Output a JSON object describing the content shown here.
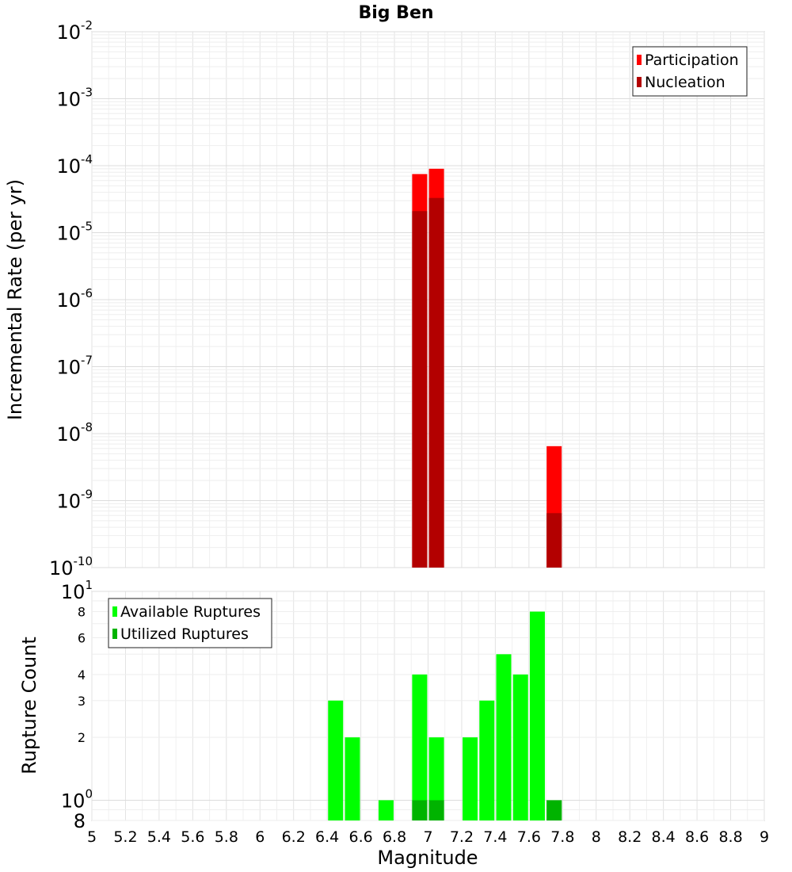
{
  "chart_data": [
    {
      "type": "bar",
      "title": "Big Ben",
      "ylabel": "Incremental Rate (per yr)",
      "y_scale": "log",
      "ylim": [
        1e-10,
        0.01
      ],
      "xlim": [
        5,
        9
      ],
      "grid": true,
      "legend_position": "top-right",
      "series": [
        {
          "name": "Participation",
          "color": "#ff0000",
          "bars": [
            {
              "x": 6.95,
              "y": 7.5e-05
            },
            {
              "x": 7.05,
              "y": 9e-05
            },
            {
              "x": 7.75,
              "y": 6.5e-09
            }
          ]
        },
        {
          "name": "Nucleation",
          "color": "#b30000",
          "bars": [
            {
              "x": 6.95,
              "y": 2.1e-05
            },
            {
              "x": 7.05,
              "y": 3.3e-05
            },
            {
              "x": 7.75,
              "y": 6.5e-10
            }
          ]
        }
      ],
      "y_ticks": [
        {
          "value": 0.01,
          "base": "10",
          "exp": "-2"
        },
        {
          "value": 0.001,
          "base": "10",
          "exp": "-3"
        },
        {
          "value": 0.0001,
          "base": "10",
          "exp": "-4"
        },
        {
          "value": 1e-05,
          "base": "10",
          "exp": "-5"
        },
        {
          "value": 1e-06,
          "base": "10",
          "exp": "-6"
        },
        {
          "value": 1e-07,
          "base": "10",
          "exp": "-7"
        },
        {
          "value": 1e-08,
          "base": "10",
          "exp": "-8"
        },
        {
          "value": 1e-09,
          "base": "10",
          "exp": "-9"
        },
        {
          "value": 1e-10,
          "base": "10",
          "exp": "-10"
        }
      ]
    },
    {
      "type": "bar",
      "xlabel": "Magnitude",
      "ylabel": "Rupture Count",
      "y_scale": "log",
      "ylim": [
        0.8,
        10
      ],
      "xlim": [
        5,
        9
      ],
      "grid": true,
      "legend_position": "top-left",
      "series": [
        {
          "name": "Available Ruptures",
          "color": "#00ff00",
          "bars": [
            {
              "x": 6.45,
              "y": 3
            },
            {
              "x": 6.55,
              "y": 2
            },
            {
              "x": 6.75,
              "y": 1
            },
            {
              "x": 6.95,
              "y": 4
            },
            {
              "x": 7.05,
              "y": 2
            },
            {
              "x": 7.25,
              "y": 2
            },
            {
              "x": 7.35,
              "y": 3
            },
            {
              "x": 7.45,
              "y": 5
            },
            {
              "x": 7.55,
              "y": 4
            },
            {
              "x": 7.65,
              "y": 8
            },
            {
              "x": 7.75,
              "y": 1
            }
          ]
        },
        {
          "name": "Utilized Ruptures",
          "color": "#00b300",
          "bars": [
            {
              "x": 6.95,
              "y": 1
            },
            {
              "x": 7.05,
              "y": 1
            },
            {
              "x": 7.75,
              "y": 1
            }
          ]
        }
      ],
      "y_ticks": [
        {
          "value": 10,
          "base": "10",
          "exp": "1"
        },
        {
          "value": 8,
          "label": "8"
        },
        {
          "value": 6,
          "label": "6"
        },
        {
          "value": 4,
          "label": "4"
        },
        {
          "value": 3,
          "label": "3"
        },
        {
          "value": 2,
          "label": "2"
        },
        {
          "value": 1,
          "base": "10",
          "exp": "0"
        },
        {
          "value": 0.8,
          "label": "8"
        }
      ],
      "x_ticks": [
        "5",
        "5.2",
        "5.4",
        "5.6",
        "5.8",
        "6",
        "6.2",
        "6.4",
        "6.6",
        "6.8",
        "7",
        "7.2",
        "7.4",
        "7.6",
        "7.8",
        "8",
        "8.2",
        "8.4",
        "8.6",
        "8.8",
        "9"
      ]
    }
  ]
}
